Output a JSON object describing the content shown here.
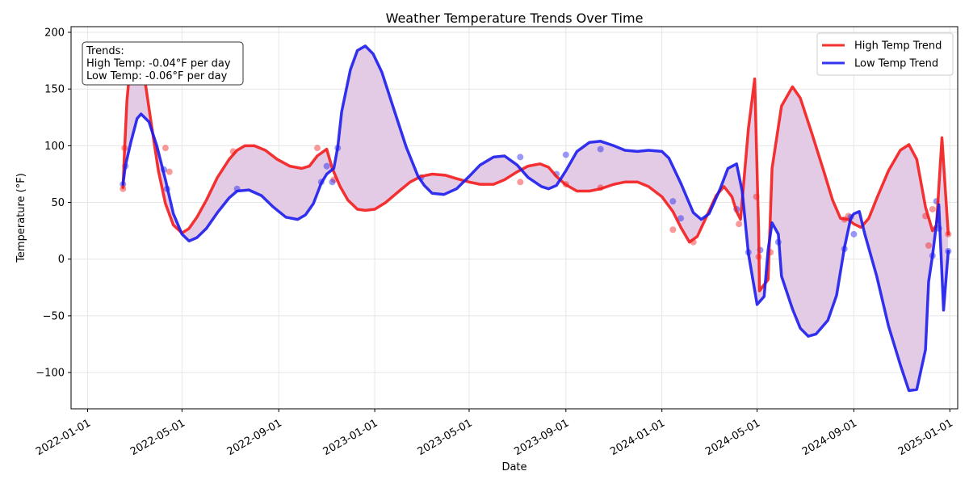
{
  "chart_data": {
    "type": "line",
    "title": "Weather Temperature Trends Over Time",
    "xlabel": "Date",
    "ylabel": "Temperature (°F)",
    "x_ticks": [
      "2022-01-01",
      "2022-05-01",
      "2022-09-01",
      "2023-01-01",
      "2023-05-01",
      "2023-09-01",
      "2024-01-01",
      "2024-05-01",
      "2024-09-01",
      "2025-01-01"
    ],
    "y_ticks": [
      -100,
      -50,
      0,
      50,
      100,
      150,
      200
    ],
    "xlim": [
      "2021-12-11",
      "2025-01-11"
    ],
    "ylim": [
      -132,
      205
    ],
    "grid": true,
    "legend_position": "top-right",
    "fill_between": {
      "color": "#e2c8e4"
    },
    "annotation": {
      "lines": [
        "Trends:",
        "High Temp: -0.04°F per day",
        "Low Temp: -0.06°F per day"
      ],
      "position": "top-left"
    },
    "series": [
      {
        "name": "High Temp Trend",
        "color": "#f41c1c",
        "points": [
          [
            "2022-02-15",
            63
          ],
          [
            "2022-02-17",
            97
          ],
          [
            "2022-02-20",
            140
          ],
          [
            "2022-02-25",
            176
          ],
          [
            "2022-03-05",
            182
          ],
          [
            "2022-03-15",
            157
          ],
          [
            "2022-03-25",
            110
          ],
          [
            "2022-04-01",
            78
          ],
          [
            "2022-04-10",
            49
          ],
          [
            "2022-04-20",
            30
          ],
          [
            "2022-05-01",
            23
          ],
          [
            "2022-05-10",
            27
          ],
          [
            "2022-05-20",
            37
          ],
          [
            "2022-06-01",
            52
          ],
          [
            "2022-06-15",
            72
          ],
          [
            "2022-06-30",
            88
          ],
          [
            "2022-07-10",
            96
          ],
          [
            "2022-07-20",
            100
          ],
          [
            "2022-08-01",
            100
          ],
          [
            "2022-08-15",
            96
          ],
          [
            "2022-08-30",
            88
          ],
          [
            "2022-09-15",
            82
          ],
          [
            "2022-09-30",
            80
          ],
          [
            "2022-10-10",
            82
          ],
          [
            "2022-10-20",
            91
          ],
          [
            "2022-11-01",
            97
          ],
          [
            "2022-11-08",
            80
          ],
          [
            "2022-11-18",
            64
          ],
          [
            "2022-11-28",
            52
          ],
          [
            "2022-12-10",
            44
          ],
          [
            "2022-12-20",
            43
          ],
          [
            "2023-01-01",
            44
          ],
          [
            "2023-01-15",
            50
          ],
          [
            "2023-02-01",
            60
          ],
          [
            "2023-02-15",
            68
          ],
          [
            "2023-03-01",
            73
          ],
          [
            "2023-03-15",
            75
          ],
          [
            "2023-04-01",
            74
          ],
          [
            "2023-04-15",
            71
          ],
          [
            "2023-05-01",
            68
          ],
          [
            "2023-05-15",
            66
          ],
          [
            "2023-06-01",
            66
          ],
          [
            "2023-06-15",
            70
          ],
          [
            "2023-07-01",
            77
          ],
          [
            "2023-07-15",
            82
          ],
          [
            "2023-07-30",
            84
          ],
          [
            "2023-08-10",
            81
          ],
          [
            "2023-08-20",
            73
          ],
          [
            "2023-08-31",
            66
          ],
          [
            "2023-09-15",
            60
          ],
          [
            "2023-10-01",
            60
          ],
          [
            "2023-10-15",
            62
          ],
          [
            "2023-11-01",
            66
          ],
          [
            "2023-11-15",
            68
          ],
          [
            "2023-12-01",
            68
          ],
          [
            "2023-12-15",
            64
          ],
          [
            "2024-01-01",
            55
          ],
          [
            "2024-01-15",
            42
          ],
          [
            "2024-01-25",
            28
          ],
          [
            "2024-02-05",
            15
          ],
          [
            "2024-02-15",
            20
          ],
          [
            "2024-02-25",
            35
          ],
          [
            "2024-03-10",
            56
          ],
          [
            "2024-03-20",
            64
          ],
          [
            "2024-03-30",
            55
          ],
          [
            "2024-04-05",
            42
          ],
          [
            "2024-04-10",
            35
          ],
          [
            "2024-04-20",
            115
          ],
          [
            "2024-04-28",
            159
          ],
          [
            "2024-05-03",
            25
          ],
          [
            "2024-05-04",
            -28
          ],
          [
            "2024-05-15",
            -18
          ],
          [
            "2024-05-20",
            80
          ],
          [
            "2024-06-01",
            135
          ],
          [
            "2024-06-15",
            152
          ],
          [
            "2024-06-25",
            142
          ],
          [
            "2024-07-10",
            110
          ],
          [
            "2024-07-25",
            77
          ],
          [
            "2024-08-05",
            52
          ],
          [
            "2024-08-15",
            36
          ],
          [
            "2024-08-25",
            35
          ],
          [
            "2024-09-01",
            31
          ],
          [
            "2024-09-10",
            28
          ],
          [
            "2024-09-20",
            36
          ],
          [
            "2024-10-01",
            55
          ],
          [
            "2024-10-15",
            78
          ],
          [
            "2024-10-30",
            96
          ],
          [
            "2024-11-10",
            101
          ],
          [
            "2024-11-20",
            88
          ],
          [
            "2024-12-01",
            46
          ],
          [
            "2024-12-10",
            25
          ],
          [
            "2024-12-15",
            30
          ],
          [
            "2024-12-22",
            107
          ],
          [
            "2024-12-30",
            22
          ]
        ],
        "observed": [
          [
            "2022-02-15",
            62
          ],
          [
            "2022-02-17",
            98
          ],
          [
            "2022-04-10",
            98
          ],
          [
            "2022-04-15",
            77
          ],
          [
            "2022-07-05",
            95
          ],
          [
            "2022-10-20",
            98
          ],
          [
            "2022-11-10",
            70
          ],
          [
            "2023-07-05",
            68
          ],
          [
            "2023-09-01",
            66
          ],
          [
            "2023-10-15",
            63
          ],
          [
            "2024-01-15",
            26
          ],
          [
            "2024-02-10",
            15
          ],
          [
            "2024-04-08",
            31
          ],
          [
            "2024-04-30",
            55
          ],
          [
            "2024-05-03",
            2
          ],
          [
            "2024-05-18",
            6
          ],
          [
            "2024-08-20",
            35
          ],
          [
            "2024-08-25",
            38
          ],
          [
            "2024-12-01",
            38
          ],
          [
            "2024-12-05",
            12
          ],
          [
            "2024-12-10",
            44
          ],
          [
            "2024-12-30",
            22
          ]
        ]
      },
      {
        "name": "Low Temp Trend",
        "color": "#1c1ced",
        "points": [
          [
            "2022-02-15",
            66
          ],
          [
            "2022-02-18",
            82
          ],
          [
            "2022-02-25",
            103
          ],
          [
            "2022-03-05",
            124
          ],
          [
            "2022-03-10",
            128
          ],
          [
            "2022-03-20",
            121
          ],
          [
            "2022-03-30",
            100
          ],
          [
            "2022-04-10",
            70
          ],
          [
            "2022-04-20",
            40
          ],
          [
            "2022-05-01",
            22
          ],
          [
            "2022-05-10",
            16
          ],
          [
            "2022-05-20",
            19
          ],
          [
            "2022-06-01",
            27
          ],
          [
            "2022-06-15",
            41
          ],
          [
            "2022-06-30",
            54
          ],
          [
            "2022-07-10",
            60
          ],
          [
            "2022-07-25",
            61
          ],
          [
            "2022-08-10",
            56
          ],
          [
            "2022-08-25",
            46
          ],
          [
            "2022-09-10",
            37
          ],
          [
            "2022-09-25",
            35
          ],
          [
            "2022-10-05",
            39
          ],
          [
            "2022-10-15",
            49
          ],
          [
            "2022-10-25",
            67
          ],
          [
            "2022-11-01",
            75
          ],
          [
            "2022-11-10",
            80
          ],
          [
            "2022-11-15",
            99
          ],
          [
            "2022-11-20",
            130
          ],
          [
            "2022-12-01",
            167
          ],
          [
            "2022-12-10",
            184
          ],
          [
            "2022-12-20",
            188
          ],
          [
            "2022-12-30",
            181
          ],
          [
            "2023-01-10",
            165
          ],
          [
            "2023-01-25",
            133
          ],
          [
            "2023-02-10",
            99
          ],
          [
            "2023-02-25",
            73
          ],
          [
            "2023-03-05",
            65
          ],
          [
            "2023-03-15",
            58
          ],
          [
            "2023-03-30",
            57
          ],
          [
            "2023-04-15",
            62
          ],
          [
            "2023-05-01",
            73
          ],
          [
            "2023-05-15",
            83
          ],
          [
            "2023-06-01",
            90
          ],
          [
            "2023-06-15",
            91
          ],
          [
            "2023-07-01",
            83
          ],
          [
            "2023-07-15",
            72
          ],
          [
            "2023-08-01",
            64
          ],
          [
            "2023-08-10",
            62
          ],
          [
            "2023-08-20",
            65
          ],
          [
            "2023-09-01",
            78
          ],
          [
            "2023-09-15",
            95
          ],
          [
            "2023-10-01",
            103
          ],
          [
            "2023-10-15",
            104
          ],
          [
            "2023-11-01",
            100
          ],
          [
            "2023-11-15",
            96
          ],
          [
            "2023-12-01",
            95
          ],
          [
            "2023-12-15",
            96
          ],
          [
            "2024-01-01",
            95
          ],
          [
            "2024-01-10",
            89
          ],
          [
            "2024-01-25",
            67
          ],
          [
            "2024-02-10",
            41
          ],
          [
            "2024-02-20",
            35
          ],
          [
            "2024-03-01",
            40
          ],
          [
            "2024-03-15",
            62
          ],
          [
            "2024-03-25",
            80
          ],
          [
            "2024-04-05",
            84
          ],
          [
            "2024-04-12",
            60
          ],
          [
            "2024-04-20",
            5
          ],
          [
            "2024-05-01",
            -40
          ],
          [
            "2024-05-10",
            -33
          ],
          [
            "2024-05-15",
            8
          ],
          [
            "2024-05-20",
            32
          ],
          [
            "2024-05-28",
            22
          ],
          [
            "2024-06-01",
            -15
          ],
          [
            "2024-06-15",
            -44
          ],
          [
            "2024-06-25",
            -61
          ],
          [
            "2024-07-05",
            -68
          ],
          [
            "2024-07-15",
            -66
          ],
          [
            "2024-07-30",
            -54
          ],
          [
            "2024-08-10",
            -32
          ],
          [
            "2024-08-20",
            10
          ],
          [
            "2024-08-28",
            36
          ],
          [
            "2024-09-01",
            40
          ],
          [
            "2024-09-08",
            42
          ],
          [
            "2024-09-15",
            22
          ],
          [
            "2024-09-30",
            -15
          ],
          [
            "2024-10-15",
            -59
          ],
          [
            "2024-10-30",
            -93
          ],
          [
            "2024-11-10",
            -116
          ],
          [
            "2024-11-20",
            -115
          ],
          [
            "2024-12-01",
            -80
          ],
          [
            "2024-12-05",
            -20
          ],
          [
            "2024-12-10",
            3
          ],
          [
            "2024-12-18",
            48
          ],
          [
            "2024-12-24",
            -45
          ],
          [
            "2024-12-30",
            7
          ]
        ],
        "observed": [
          [
            "2022-02-15",
            66
          ],
          [
            "2022-02-18",
            82
          ],
          [
            "2022-04-08",
            79
          ],
          [
            "2022-04-12",
            62
          ],
          [
            "2022-07-10",
            62
          ],
          [
            "2022-10-25",
            68
          ],
          [
            "2022-11-01",
            82
          ],
          [
            "2022-11-08",
            68
          ],
          [
            "2022-11-15",
            98
          ],
          [
            "2023-03-01",
            72
          ],
          [
            "2023-07-05",
            90
          ],
          [
            "2023-08-20",
            75
          ],
          [
            "2023-09-01",
            92
          ],
          [
            "2023-10-15",
            97
          ],
          [
            "2024-01-15",
            51
          ],
          [
            "2024-01-25",
            36
          ],
          [
            "2024-04-05",
            44
          ],
          [
            "2024-04-20",
            6
          ],
          [
            "2024-05-05",
            8
          ],
          [
            "2024-05-28",
            15
          ],
          [
            "2024-08-20",
            9
          ],
          [
            "2024-08-28",
            37
          ],
          [
            "2024-09-01",
            22
          ],
          [
            "2024-12-10",
            3
          ],
          [
            "2024-12-15",
            51
          ],
          [
            "2024-12-18",
            27
          ],
          [
            "2024-12-30",
            7
          ]
        ]
      }
    ]
  }
}
